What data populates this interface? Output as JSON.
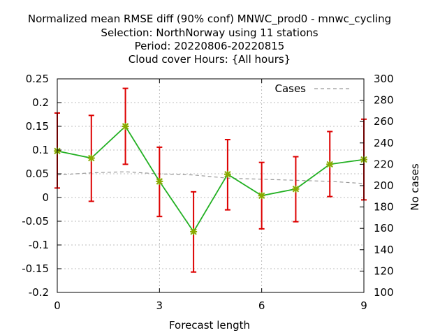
{
  "chart_data": {
    "type": "line",
    "title_lines": [
      "Normalized mean RMSE diff (90% conf) MNWC_prod0 - mnwc_cycling",
      "Selection: NorthNorway using    11 stations",
      "Period: 20220806-20220815",
      "Cloud cover   Hours: {All hours}"
    ],
    "xlabel": "Forecast length",
    "ylabel": "",
    "y2label": "No cases",
    "xlim": [
      0,
      9
    ],
    "ylim": [
      -0.2,
      0.25
    ],
    "y2lim": [
      100,
      300
    ],
    "x_ticks": [
      0,
      3,
      6,
      9
    ],
    "y_ticks": [
      -0.2,
      -0.15,
      -0.1,
      -0.05,
      0,
      0.05,
      0.1,
      0.15,
      0.2,
      0.25
    ],
    "y_tick_labels": [
      "-0.2",
      "-0.15",
      "-0.1",
      "-0.05",
      "0",
      "0.05",
      "0.1",
      "0.15",
      "0.2",
      "0.25"
    ],
    "y2_ticks": [
      100,
      120,
      140,
      160,
      180,
      200,
      220,
      240,
      260,
      280,
      300
    ],
    "grid": true,
    "legend_position": "top-right",
    "series": [
      {
        "kind": "line-errorbars",
        "x": [
          0,
          1,
          2,
          3,
          4,
          5,
          6,
          7,
          8,
          9
        ],
        "values": [
          0.098,
          0.083,
          0.15,
          0.034,
          -0.072,
          0.049,
          0.004,
          0.018,
          0.07,
          0.08
        ],
        "err_low": [
          0.02,
          -0.008,
          0.07,
          -0.04,
          -0.157,
          -0.026,
          -0.066,
          -0.051,
          0.002,
          -0.005
        ],
        "err_high": [
          0.178,
          0.173,
          0.23,
          0.106,
          0.012,
          0.122,
          0.074,
          0.086,
          0.139,
          0.165
        ],
        "color": "#22b022",
        "marker_color": "#88aa00",
        "errorbar_color": "#dd0000"
      },
      {
        "name": "Cases",
        "kind": "dashed-line",
        "axis": "right",
        "x": [
          0,
          1,
          2,
          3,
          4,
          5,
          6,
          7,
          8,
          9
        ],
        "values": [
          210,
          212,
          213,
          211,
          210,
          207,
          206,
          205,
          204,
          202
        ],
        "color": "#999999"
      }
    ]
  }
}
